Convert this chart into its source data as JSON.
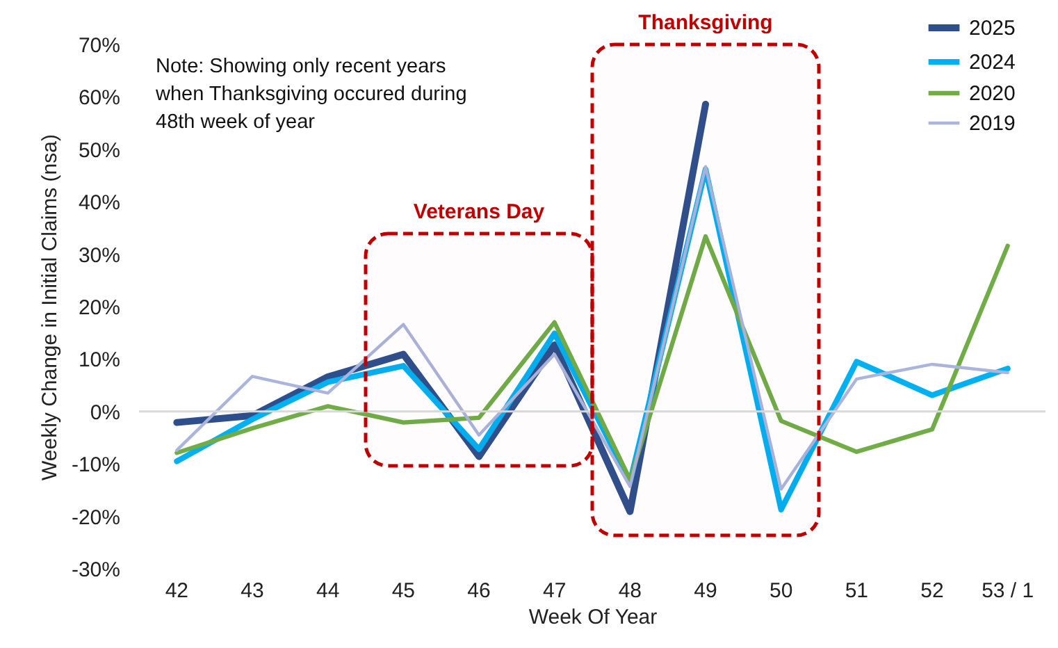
{
  "chart_data": {
    "type": "line",
    "categories": [
      "42",
      "43",
      "44",
      "45",
      "46",
      "47",
      "48",
      "49",
      "50",
      "51",
      "52",
      "53 / 1"
    ],
    "series": [
      {
        "name": "2025",
        "color": "#2f4f8c",
        "values": [
          -2.1,
          -0.8,
          6.6,
          10.9,
          -8.6,
          12.7,
          -19.1,
          58.6,
          null,
          null,
          null,
          null
        ]
      },
      {
        "name": "2024",
        "color": "#00b0f0",
        "values": [
          -9.5,
          -1.5,
          5.6,
          8.7,
          -7.2,
          14.9,
          -13.4,
          46.2,
          -18.7,
          9.5,
          3.1,
          8.2
        ]
      },
      {
        "name": "2020",
        "color": "#70ad47",
        "values": [
          -7.9,
          -3.2,
          1.0,
          -2.1,
          -1.2,
          17.0,
          -13.0,
          33.4,
          -1.8,
          -7.7,
          -3.4,
          31.6
        ]
      },
      {
        "name": "2019",
        "color": "#aab4dc",
        "values": [
          -7.4,
          6.7,
          3.5,
          16.6,
          -4.5,
          10.9,
          -14.3,
          46.7,
          -14.8,
          6.2,
          9.0,
          7.4
        ]
      }
    ],
    "xlabel": "Week Of Year",
    "ylabel": "Weekly  Change in Initial Claims  (nsa)",
    "ylim": [
      -30,
      70
    ],
    "yticks": [
      {
        "value": -30,
        "label": "-30%"
      },
      {
        "value": -20,
        "label": "-20%"
      },
      {
        "value": -10,
        "label": "-10%"
      },
      {
        "value": 0,
        "label": "0%"
      },
      {
        "value": 10,
        "label": "10%"
      },
      {
        "value": 20,
        "label": "20%"
      },
      {
        "value": 30,
        "label": "30%"
      },
      {
        "value": 40,
        "label": "40%"
      },
      {
        "value": 50,
        "label": "50%"
      },
      {
        "value": 60,
        "label": "60%"
      },
      {
        "value": 70,
        "label": "70%"
      }
    ],
    "grid": false,
    "legend": "top right",
    "marker": "none",
    "ref_lines": [
      {
        "axis": "y",
        "value": 0,
        "color": "#d9d9d9"
      }
    ],
    "bands": [
      {
        "axis": "x",
        "from": "45",
        "to": "47",
        "label": "Veterans Day",
        "color": "#c00000"
      },
      {
        "axis": "x",
        "from": "48",
        "to": "50",
        "label": "Thanksgiving",
        "color": "#c00000"
      }
    ],
    "annotations": [
      "Note: Showing only recent years when Thanksgiving occured during 48th week of year"
    ]
  }
}
